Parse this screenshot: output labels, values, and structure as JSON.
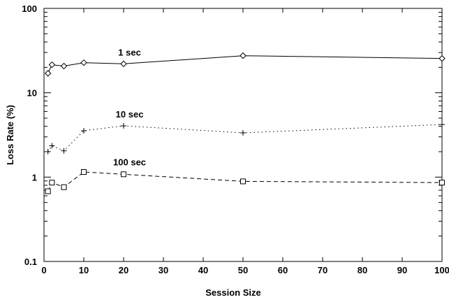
{
  "chart_data": {
    "type": "line",
    "title": "",
    "xlabel": "Session Size",
    "ylabel": "Loss Rate (%)",
    "xlim": [
      0,
      100
    ],
    "ylim": [
      0.1,
      100
    ],
    "yscale": "log",
    "grid": false,
    "legend": "inline labels next to each series",
    "x_ticks": [
      0,
      10,
      20,
      30,
      40,
      50,
      60,
      70,
      80,
      90,
      100
    ],
    "y_ticks": [
      0.1,
      1,
      10,
      100
    ],
    "x_tick_labels": [
      "0",
      "10",
      "20",
      "30",
      "40",
      "50",
      "60",
      "70",
      "80",
      "90",
      "100"
    ],
    "y_tick_labels": [
      "0.1",
      "1",
      "10",
      "100"
    ],
    "series": [
      {
        "name": "1 sec",
        "marker": "diamond",
        "line_style": "solid",
        "x": [
          1,
          2,
          5,
          10,
          20,
          50,
          100
        ],
        "y": [
          17,
          21.5,
          20.7,
          22.7,
          22,
          27.5,
          25.5
        ]
      },
      {
        "name": "10 sec",
        "marker": "plus",
        "line_style": "dotted",
        "x": [
          1,
          2,
          5,
          10,
          20,
          50,
          100
        ],
        "y": [
          2.0,
          2.35,
          2.05,
          3.55,
          4.05,
          3.35,
          4.2
        ]
      },
      {
        "name": "100 sec",
        "marker": "square",
        "line_style": "dashed",
        "x": [
          1,
          2,
          5,
          10,
          20,
          50,
          100
        ],
        "y": [
          0.68,
          0.86,
          0.76,
          1.15,
          1.08,
          0.89,
          0.86
        ]
      }
    ]
  }
}
